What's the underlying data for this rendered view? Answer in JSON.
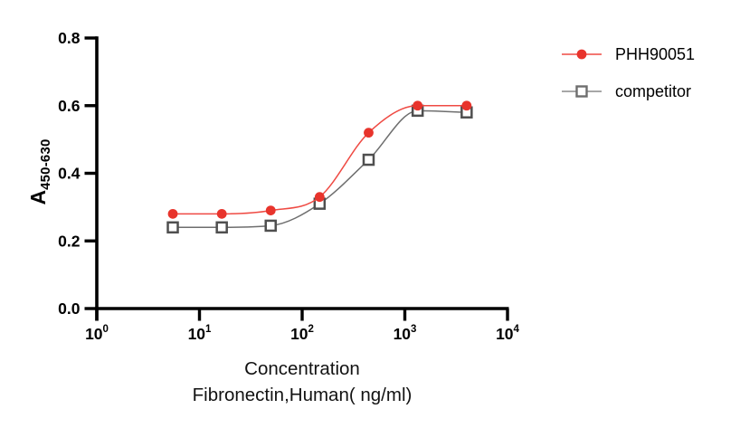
{
  "figure": {
    "background": "#ffffff"
  },
  "y_axis": {
    "label_base": "A",
    "label_subscript": "450-630",
    "tick_labels": [
      "0.0",
      "0.2",
      "0.4",
      "0.6",
      "0.8"
    ]
  },
  "x_axis": {
    "tick_base": "10",
    "tick_exponents": [
      "0",
      "1",
      "2",
      "3",
      "4"
    ],
    "title_line1": "Concentration",
    "title_line2": "Fibronectin,Human( ng/ml)"
  },
  "legend": {
    "position": "right-top",
    "items": [
      {
        "label": "PHH90051",
        "marker": "filled-circle",
        "marker_color": "#e8342c",
        "line_color": "#ef4a43"
      },
      {
        "label": "competitor",
        "marker": "open-square",
        "marker_color": "#6e6e6e",
        "line_color": "#8a8a8a"
      }
    ]
  },
  "chart_data": {
    "type": "line",
    "title": "",
    "xlabel": "Concentration Fibronectin,Human (ng/ml)",
    "ylabel": "A450-630",
    "x_scale": "log10",
    "xlim": [
      1,
      10000
    ],
    "ylim": [
      0,
      0.8
    ],
    "yticks": [
      0,
      0.2,
      0.4,
      0.6,
      0.8
    ],
    "xtick_exponents": [
      0,
      1,
      2,
      3,
      4
    ],
    "grid": false,
    "legend_position": "right-top",
    "x": [
      5.5,
      16.5,
      49.4,
      148,
      444,
      1333,
      4000
    ],
    "series": [
      {
        "name": "PHH90051",
        "marker": "filled-circle",
        "marker_color": "#e8342c",
        "line_color": "#ef4a43",
        "values": [
          0.28,
          0.28,
          0.29,
          0.33,
          0.52,
          0.6,
          0.6
        ]
      },
      {
        "name": "competitor",
        "marker": "open-square",
        "marker_color": "#4f4f4f",
        "line_color": "#6e6e6e",
        "values": [
          0.24,
          0.24,
          0.245,
          0.31,
          0.44,
          0.585,
          0.58
        ]
      }
    ]
  }
}
